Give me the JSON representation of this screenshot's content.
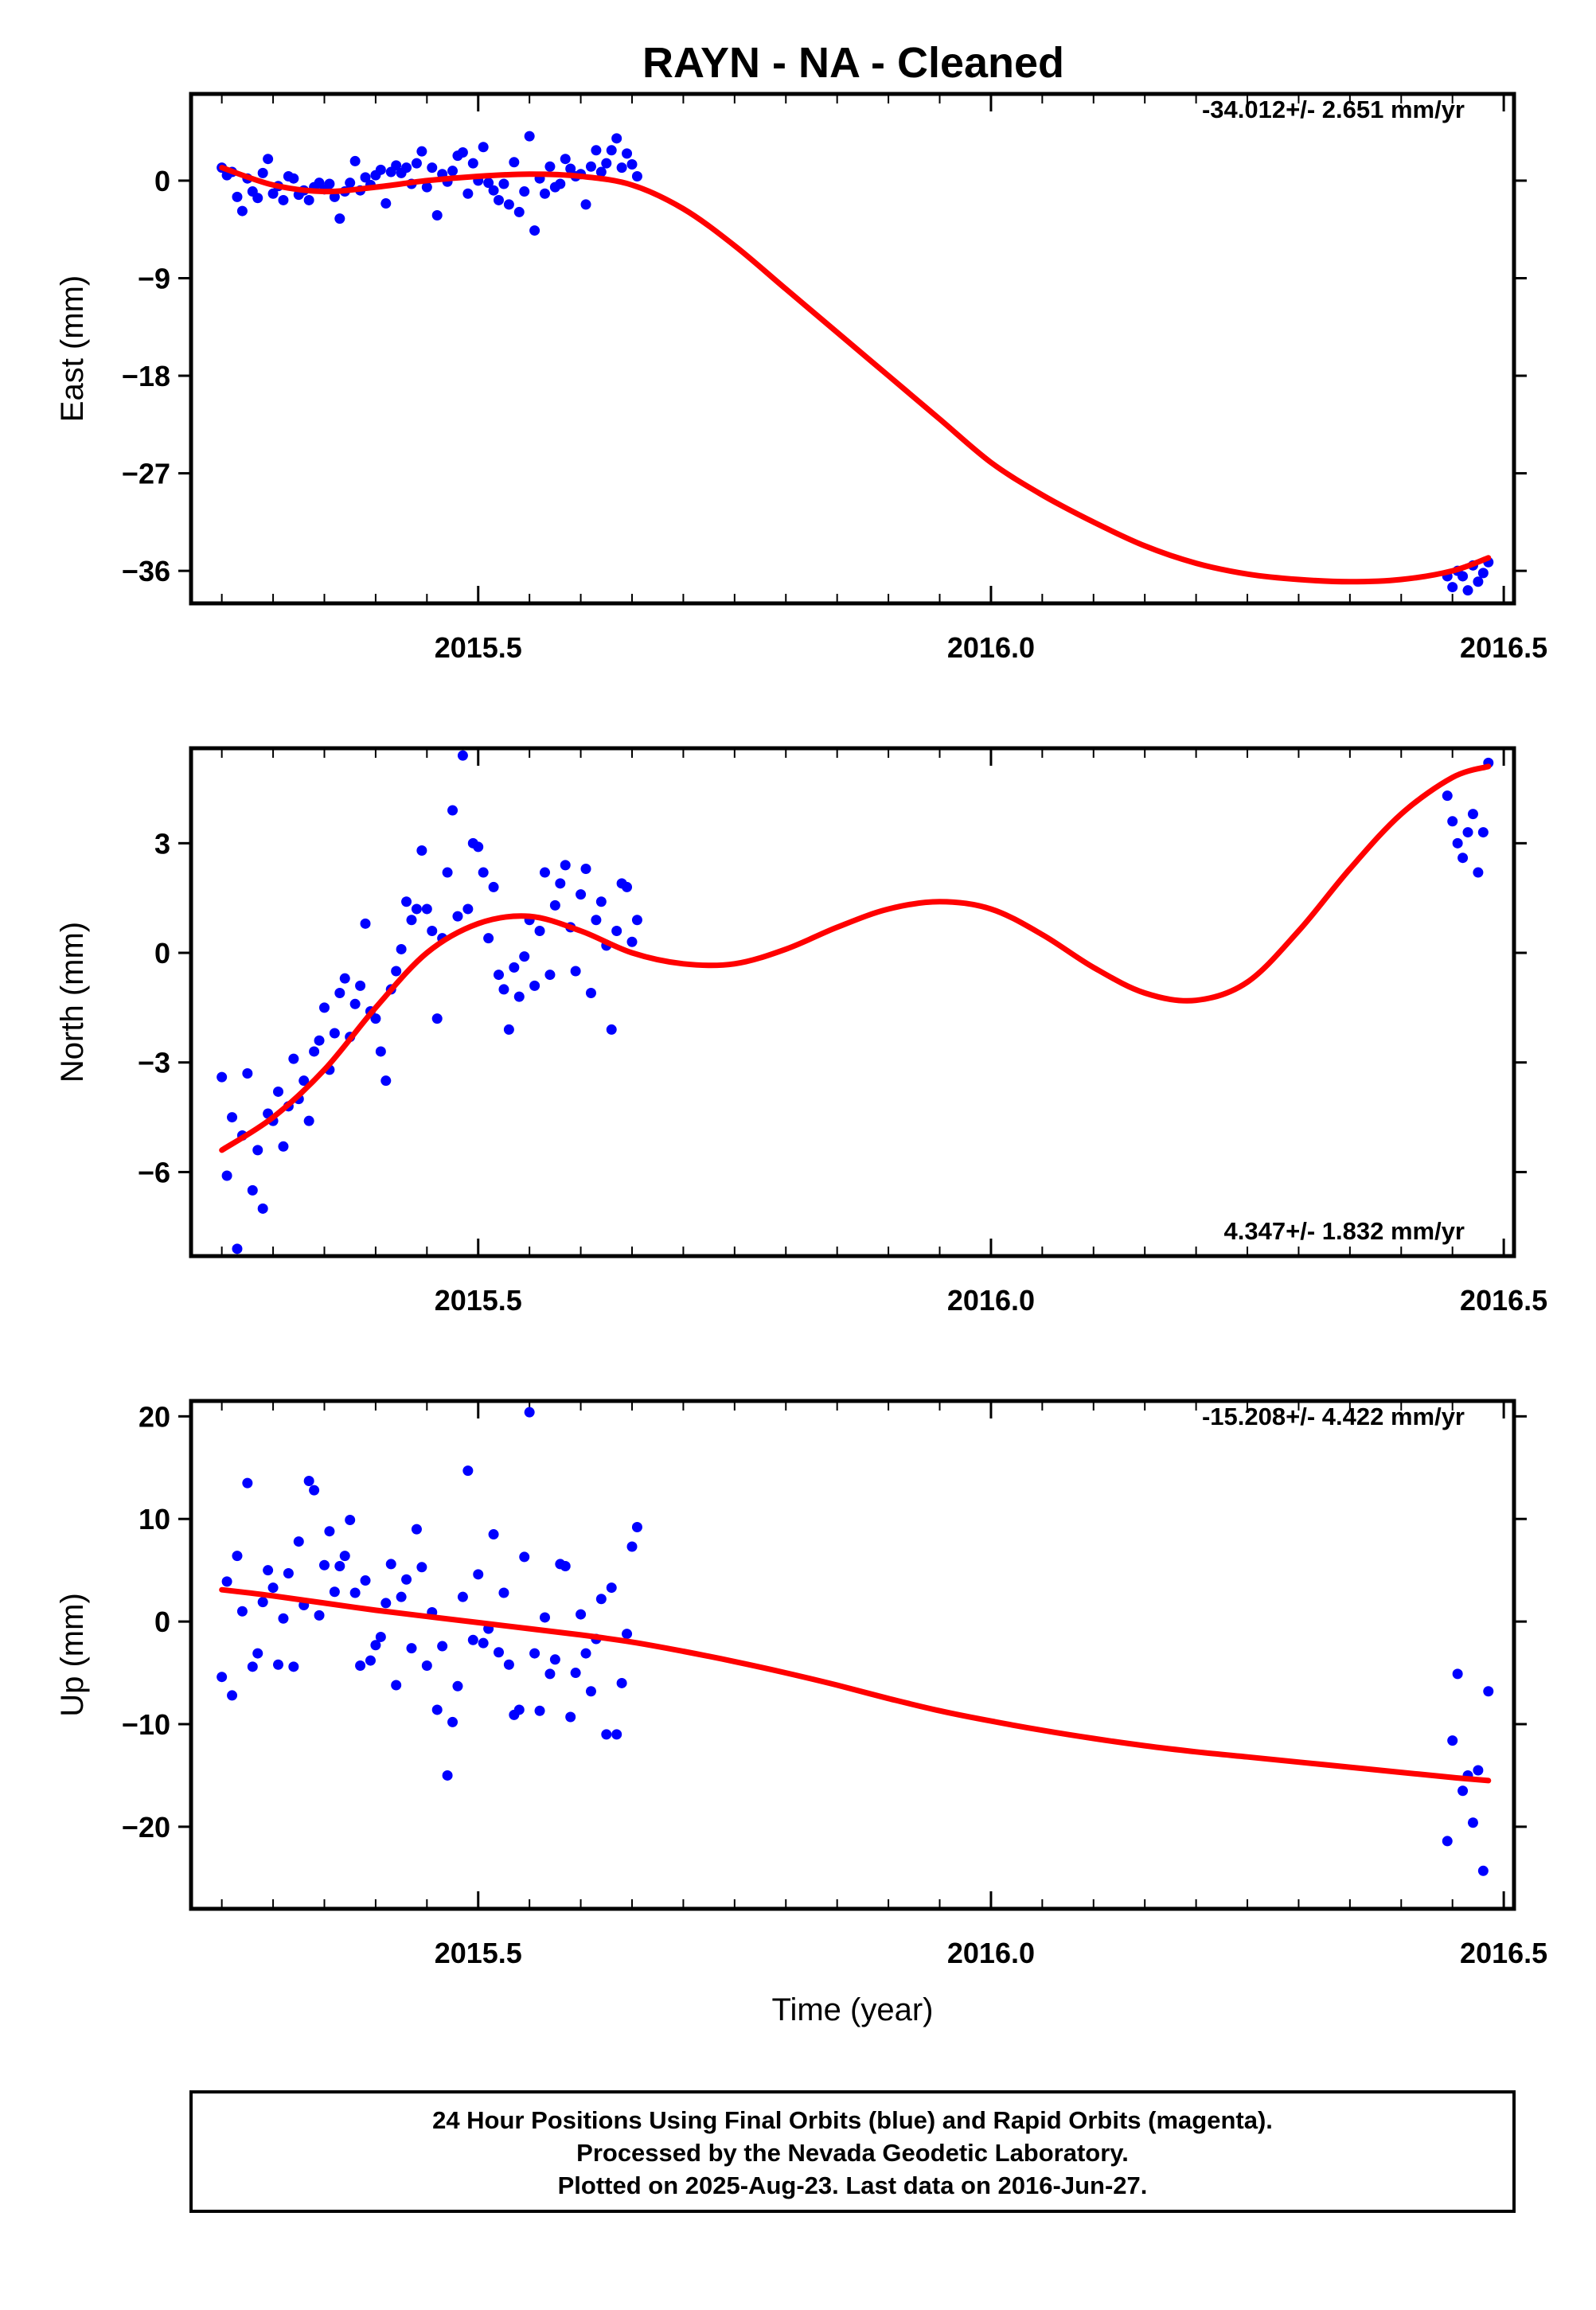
{
  "title": "RAYN  - NA - Cleaned",
  "footer": {
    "lines": [
      "24 Hour Positions Using Final Orbits (blue) and Rapid Orbits (magenta).",
      "Processed by the Nevada Geodetic Laboratory.",
      "Plotted on 2025-Aug-23. Last data on 2016-Jun-27."
    ]
  },
  "colors": {
    "points": "#0000ff",
    "fit": "#ff0000",
    "frame": "#000000"
  },
  "chart_data": [
    {
      "type": "scatter",
      "ylabel": "East (mm)",
      "xlabel": "",
      "rate": "-34.012+/- 2.651 mm/yr",
      "xlim": [
        2015.22,
        2016.51
      ],
      "ylim": [
        -39.0,
        8.0
      ],
      "xticks": [
        2015.5,
        2016.0,
        2016.5
      ],
      "xtick_labels": [
        "2015.5",
        "2016.0",
        "2016.5"
      ],
      "yticks": [
        0,
        -9,
        -18,
        -27,
        -36
      ],
      "ytick_labels": [
        "0",
        "−9",
        "−18",
        "−27",
        "−36"
      ],
      "series": [
        {
          "x": [
            2015.25,
            2015.255,
            2015.26,
            2015.265,
            2015.27,
            2015.275,
            2015.28,
            2015.285,
            2015.29,
            2015.295,
            2015.3,
            2015.305,
            2015.31,
            2015.315,
            2015.32,
            2015.325,
            2015.33,
            2015.335,
            2015.34,
            2015.345,
            2015.35,
            2015.355,
            2015.36,
            2015.365,
            2015.37,
            2015.375,
            2015.38,
            2015.385,
            2015.39,
            2015.395,
            2015.4,
            2015.405,
            2015.41,
            2015.415,
            2015.42,
            2015.425,
            2015.43,
            2015.435,
            2015.44,
            2015.445,
            2015.45,
            2015.455,
            2015.46,
            2015.465,
            2015.47,
            2015.475,
            2015.48,
            2015.485,
            2015.49,
            2015.495,
            2015.5,
            2015.505,
            2015.51,
            2015.515,
            2015.52,
            2015.525,
            2015.53,
            2015.535,
            2015.54,
            2015.545,
            2015.55,
            2015.555,
            2015.56,
            2015.565,
            2015.57,
            2015.575,
            2015.58,
            2015.585,
            2015.59,
            2015.595,
            2015.6,
            2015.605,
            2015.61,
            2015.615,
            2015.62,
            2015.625,
            2015.63,
            2015.635,
            2015.64,
            2015.645,
            2015.65,
            2015.655,
            2016.445,
            2016.45,
            2016.455,
            2016.46,
            2016.465,
            2016.47,
            2016.475,
            2016.48,
            2016.485
          ],
          "y": [
            1.2,
            0.5,
            0.8,
            -1.5,
            -2.8,
            0.2,
            -1.0,
            -1.6,
            0.7,
            2.0,
            -1.2,
            -0.5,
            -1.8,
            0.4,
            0.2,
            -1.3,
            -0.9,
            -1.8,
            -0.6,
            -0.2,
            -0.8,
            -0.3,
            -1.5,
            -3.5,
            -1.0,
            -0.2,
            1.8,
            -0.9,
            0.3,
            -0.4,
            0.5,
            1.0,
            -2.1,
            0.8,
            1.4,
            0.7,
            1.2,
            -0.3,
            1.6,
            2.7,
            -0.6,
            1.2,
            -3.2,
            0.6,
            -0.1,
            0.9,
            2.3,
            2.6,
            -1.2,
            1.6,
            0.0,
            3.1,
            -0.2,
            -0.9,
            -1.8,
            -0.3,
            -2.2,
            1.7,
            -2.9,
            -1.0,
            4.1,
            -4.6,
            0.2,
            -1.2,
            1.3,
            -0.6,
            -0.3,
            2.0,
            1.1,
            0.4,
            0.6,
            -2.2,
            1.3,
            2.8,
            0.8,
            1.6,
            2.8,
            3.9,
            1.2,
            2.5,
            1.5,
            0.4,
            -36.5,
            -37.5,
            -36.0,
            -36.5,
            -37.8,
            -35.5,
            -37.0,
            -36.2,
            -35.2
          ],
          "fit_x": [
            2015.25,
            2015.3,
            2015.35,
            2015.4,
            2015.45,
            2015.5,
            2015.55,
            2015.6,
            2015.65,
            2015.7,
            2015.75,
            2015.8,
            2015.85,
            2015.9,
            2015.95,
            2016.0,
            2016.05,
            2016.1,
            2016.15,
            2016.2,
            2016.25,
            2016.3,
            2016.35,
            2016.4,
            2016.45,
            2016.485
          ],
          "fit_y": [
            1.2,
            -0.4,
            -1.0,
            -0.6,
            0.0,
            0.4,
            0.6,
            0.4,
            -0.4,
            -2.6,
            -6.0,
            -10.0,
            -14.0,
            -18.0,
            -22.0,
            -26.0,
            -29.0,
            -31.5,
            -33.7,
            -35.3,
            -36.3,
            -36.8,
            -37.0,
            -36.8,
            -36.0,
            -34.8
          ]
        }
      ]
    },
    {
      "type": "scatter",
      "ylabel": "North (mm)",
      "xlabel": "",
      "rate": "4.347+/- 1.832 mm/yr",
      "xlim": [
        2015.22,
        2016.51
      ],
      "ylim": [
        -8.3,
        5.6
      ],
      "xticks": [
        2015.5,
        2016.0,
        2016.5
      ],
      "xtick_labels": [
        "2015.5",
        "2016.0",
        "2016.5"
      ],
      "yticks": [
        3,
        0,
        -3,
        -6
      ],
      "ytick_labels": [
        "3",
        "0",
        "−3",
        "−6"
      ],
      "series": [
        {
          "x": [
            2015.25,
            2015.255,
            2015.26,
            2015.265,
            2015.27,
            2015.275,
            2015.28,
            2015.285,
            2015.29,
            2015.295,
            2015.3,
            2015.305,
            2015.31,
            2015.315,
            2015.32,
            2015.325,
            2015.33,
            2015.335,
            2015.34,
            2015.345,
            2015.35,
            2015.355,
            2015.36,
            2015.365,
            2015.37,
            2015.375,
            2015.38,
            2015.385,
            2015.39,
            2015.395,
            2015.4,
            2015.405,
            2015.41,
            2015.415,
            2015.42,
            2015.425,
            2015.43,
            2015.435,
            2015.44,
            2015.445,
            2015.45,
            2015.455,
            2015.46,
            2015.465,
            2015.47,
            2015.475,
            2015.48,
            2015.485,
            2015.49,
            2015.495,
            2015.5,
            2015.505,
            2015.51,
            2015.515,
            2015.52,
            2015.525,
            2015.53,
            2015.535,
            2015.54,
            2015.545,
            2015.55,
            2015.555,
            2015.56,
            2015.565,
            2015.57,
            2015.575,
            2015.58,
            2015.585,
            2015.59,
            2015.595,
            2015.6,
            2015.605,
            2015.61,
            2015.615,
            2015.62,
            2015.625,
            2015.63,
            2015.635,
            2015.64,
            2015.645,
            2015.65,
            2015.655,
            2016.445,
            2016.45,
            2016.455,
            2016.46,
            2016.465,
            2016.47,
            2016.475,
            2016.48,
            2016.485
          ],
          "y": [
            -3.4,
            -6.1,
            -4.5,
            -8.1,
            -5.0,
            -3.3,
            -6.5,
            -5.4,
            -7.0,
            -4.4,
            -4.6,
            -3.8,
            -5.3,
            -4.2,
            -2.9,
            -4.0,
            -3.5,
            -4.6,
            -2.7,
            -2.4,
            -1.5,
            -3.2,
            -2.2,
            -1.1,
            -0.7,
            -2.3,
            -1.4,
            -0.9,
            0.8,
            -1.6,
            -1.8,
            -2.7,
            -3.5,
            -1.0,
            -0.5,
            0.1,
            1.4,
            0.9,
            1.2,
            2.8,
            1.2,
            0.6,
            -1.8,
            0.4,
            2.2,
            3.9,
            1.0,
            5.4,
            1.2,
            3.0,
            2.9,
            2.2,
            0.4,
            1.8,
            -0.6,
            -1.0,
            -2.1,
            -0.4,
            -1.2,
            -0.1,
            0.9,
            -0.9,
            0.6,
            2.2,
            -0.6,
            1.3,
            1.9,
            2.4,
            0.7,
            -0.5,
            1.6,
            2.3,
            -1.1,
            0.9,
            1.4,
            0.2,
            -2.1,
            0.6,
            1.9,
            1.8,
            0.3,
            0.9,
            4.3,
            3.6,
            3.0,
            2.6,
            3.3,
            3.8,
            2.2,
            3.3,
            5.2
          ],
          "fit_x": [
            2015.25,
            2015.3,
            2015.35,
            2015.4,
            2015.45,
            2015.5,
            2015.55,
            2015.6,
            2015.65,
            2015.7,
            2015.75,
            2015.8,
            2015.85,
            2015.9,
            2015.95,
            2016.0,
            2016.05,
            2016.1,
            2016.15,
            2016.2,
            2016.25,
            2016.3,
            2016.35,
            2016.4,
            2016.45,
            2016.485
          ],
          "fit_y": [
            -5.4,
            -4.5,
            -3.2,
            -1.5,
            0.0,
            0.8,
            1.0,
            0.6,
            0.0,
            -0.3,
            -0.3,
            0.1,
            0.7,
            1.2,
            1.4,
            1.2,
            0.5,
            -0.4,
            -1.1,
            -1.3,
            -0.8,
            0.6,
            2.3,
            3.8,
            4.8,
            5.1
          ]
        }
      ]
    },
    {
      "type": "scatter",
      "ylabel": "Up (mm)",
      "xlabel": "Time (year)",
      "rate": "-15.208+/- 4.422 mm/yr",
      "xlim": [
        2015.22,
        2016.51
      ],
      "ylim": [
        -28.0,
        21.5
      ],
      "xticks": [
        2015.5,
        2016.0,
        2016.5
      ],
      "xtick_labels": [
        "2015.5",
        "2016.0",
        "2016.5"
      ],
      "yticks": [
        20,
        10,
        0,
        -10,
        -20
      ],
      "ytick_labels": [
        "20",
        "10",
        "0",
        "−10",
        "−20"
      ],
      "series": [
        {
          "x": [
            2015.25,
            2015.255,
            2015.26,
            2015.265,
            2015.27,
            2015.275,
            2015.28,
            2015.285,
            2015.29,
            2015.295,
            2015.3,
            2015.305,
            2015.31,
            2015.315,
            2015.32,
            2015.325,
            2015.33,
            2015.335,
            2015.34,
            2015.345,
            2015.35,
            2015.355,
            2015.36,
            2015.365,
            2015.37,
            2015.375,
            2015.38,
            2015.385,
            2015.39,
            2015.395,
            2015.4,
            2015.405,
            2015.41,
            2015.415,
            2015.42,
            2015.425,
            2015.43,
            2015.435,
            2015.44,
            2015.445,
            2015.45,
            2015.455,
            2015.46,
            2015.465,
            2015.47,
            2015.475,
            2015.48,
            2015.485,
            2015.49,
            2015.495,
            2015.5,
            2015.505,
            2015.51,
            2015.515,
            2015.52,
            2015.525,
            2015.53,
            2015.535,
            2015.54,
            2015.545,
            2015.55,
            2015.555,
            2015.56,
            2015.565,
            2015.57,
            2015.575,
            2015.58,
            2015.585,
            2015.59,
            2015.595,
            2015.6,
            2015.605,
            2015.61,
            2015.615,
            2015.62,
            2015.625,
            2015.63,
            2015.635,
            2015.64,
            2015.645,
            2015.65,
            2015.655,
            2016.445,
            2016.45,
            2016.455,
            2016.46,
            2016.465,
            2016.47,
            2016.475,
            2016.48,
            2016.485
          ],
          "y": [
            -5.4,
            3.9,
            -7.2,
            6.4,
            1.0,
            13.5,
            -4.4,
            -3.1,
            1.9,
            5.0,
            3.3,
            -4.2,
            0.3,
            4.7,
            -4.4,
            7.8,
            1.6,
            13.7,
            12.8,
            0.6,
            5.5,
            8.8,
            2.9,
            5.4,
            6.4,
            9.9,
            2.8,
            -4.3,
            4.0,
            -3.8,
            -2.3,
            -1.5,
            1.8,
            5.6,
            -6.2,
            2.4,
            4.1,
            -2.6,
            9.0,
            5.3,
            -4.3,
            0.9,
            -8.6,
            -2.4,
            -15.0,
            -9.8,
            -6.3,
            2.4,
            14.7,
            -1.8,
            4.6,
            -2.1,
            -0.7,
            8.5,
            -3.0,
            2.8,
            -4.2,
            -9.1,
            -8.6,
            6.3,
            20.4,
            -3.1,
            -8.7,
            0.4,
            -5.1,
            -3.7,
            5.6,
            5.4,
            -9.3,
            -5.0,
            0.7,
            -3.1,
            -6.8,
            -1.7,
            2.2,
            -11.0,
            3.3,
            -11.0,
            -6.0,
            -1.2,
            7.3,
            9.2,
            -21.4,
            -11.6,
            -5.1,
            -16.5,
            -15.0,
            -19.6,
            -14.5,
            -24.3,
            -6.8
          ],
          "fit_x": [
            2015.25,
            2015.3,
            2015.35,
            2015.4,
            2015.45,
            2015.5,
            2015.55,
            2015.6,
            2015.65,
            2015.7,
            2015.75,
            2015.8,
            2015.85,
            2015.9,
            2015.95,
            2016.0,
            2016.05,
            2016.1,
            2016.15,
            2016.2,
            2016.25,
            2016.3,
            2016.35,
            2016.4,
            2016.45,
            2016.485
          ],
          "fit_y": [
            3.1,
            2.5,
            1.8,
            1.1,
            0.5,
            -0.1,
            -0.7,
            -1.3,
            -2.0,
            -2.9,
            -3.9,
            -5.0,
            -6.2,
            -7.5,
            -8.7,
            -9.7,
            -10.6,
            -11.4,
            -12.1,
            -12.7,
            -13.2,
            -13.7,
            -14.2,
            -14.7,
            -15.2,
            -15.5
          ]
        }
      ]
    }
  ]
}
